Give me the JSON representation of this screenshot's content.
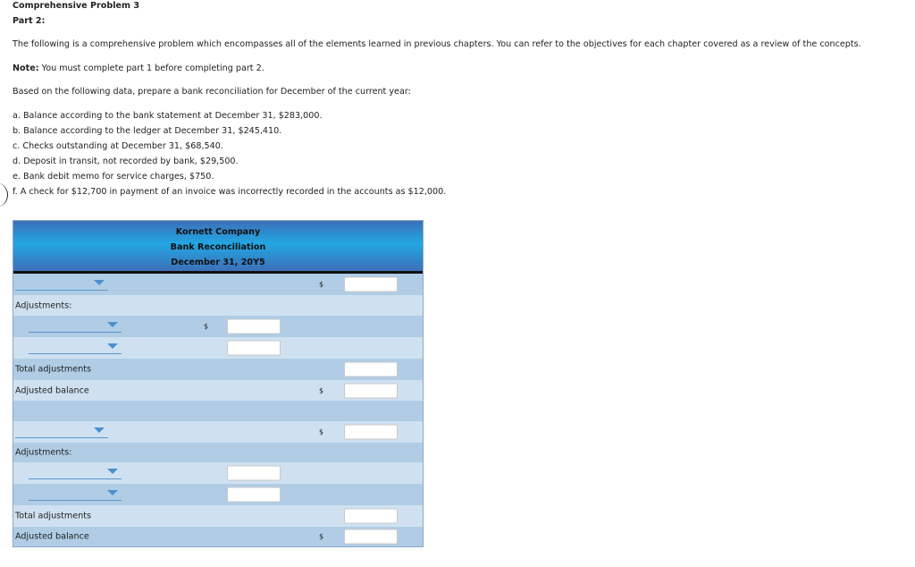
{
  "header": {
    "title": "Comprehensive Problem 3",
    "part": "Part 2:"
  },
  "intro": "The following is a comprehensive problem which encompasses all of the elements learned in previous chapters. You can refer to the objectives for each chapter covered as a review of the concepts.",
  "note": {
    "label": "Note:",
    "text": " You must complete part 1 before completing part 2."
  },
  "instruction": "Based on the following data, prepare a bank reconciliation for December of the current year:",
  "items": [
    "a. Balance according to the bank statement at December 31, $283,000.",
    "b. Balance according to the ledger at December 31, $245,410.",
    "c. Checks outstanding at December 31, $68,540.",
    "d. Deposit in transit, not recorded by bank, $29,500.",
    "e. Bank debit memo for service charges, $750.",
    "f. A check for $12,700 in payment of an invoice was incorrectly recorded in the accounts as $12,000."
  ],
  "table": {
    "company": "Kornett Company",
    "title": "Bank Reconciliation",
    "date": "December 31, 20Y5",
    "adjustments_label": "Adjustments:",
    "total_adjustments_label": "Total adjustments",
    "adjusted_balance_label": "Adjusted balance",
    "dollar": "$"
  }
}
